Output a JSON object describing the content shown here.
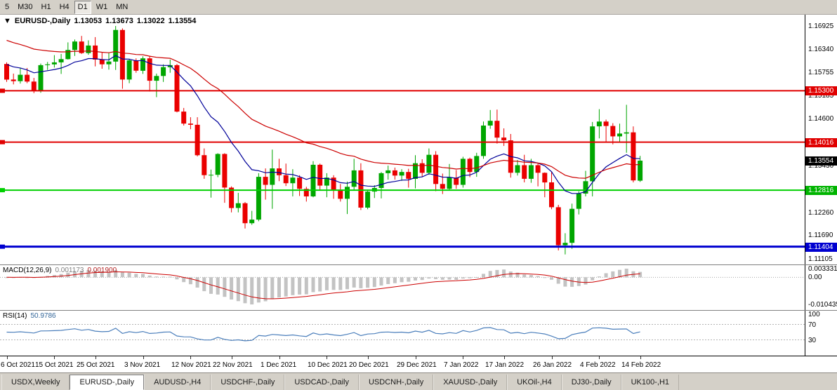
{
  "toolbar": {
    "buttons": [
      {
        "label": "5",
        "active": false
      },
      {
        "label": "M30",
        "active": false
      },
      {
        "label": "H1",
        "active": false
      },
      {
        "label": "H4",
        "active": false
      },
      {
        "label": "D1",
        "active": true
      },
      {
        "label": "W1",
        "active": false
      },
      {
        "label": "MN",
        "active": false
      }
    ]
  },
  "chart": {
    "collapse_icon": "▼",
    "title": "EURUSD-,Daily",
    "open": "1.13053",
    "high": "1.13673",
    "low": "1.13022",
    "close": "1.13554"
  },
  "price_axis": {
    "gridline_labels": [
      "1.16925",
      "1.16340",
      "1.15755",
      "1.15185",
      "1.14600",
      "1.13430",
      "1.12260",
      "1.11690",
      "1.11105"
    ],
    "badges": [
      {
        "value": "1.15300",
        "color": "#e00000"
      },
      {
        "value": "1.14016",
        "color": "#e00000"
      },
      {
        "value": "1.13554",
        "color": "#000000"
      },
      {
        "value": "1.12816",
        "color": "#00b400"
      },
      {
        "value": "1.11404",
        "color": "#0000d0"
      }
    ]
  },
  "macd_panel": {
    "label": "MACD(12,26,9)",
    "main_value": "0.001173",
    "signal_value": "0.001900",
    "scale": {
      "max": 0.003331,
      "min": -0.010435
    },
    "axis_labels": [
      {
        "text": "0.003331",
        "value": 0.003331
      },
      {
        "text": "0.00",
        "value": 0
      },
      {
        "text": "-0.010435",
        "value": -0.010435
      }
    ],
    "colors": {
      "histogram": "#c3c3c3",
      "signal": "#cc0000"
    }
  },
  "rsi_panel": {
    "label": "RSI(14)",
    "value": "50.9786",
    "axis_labels": [
      {
        "text": "100",
        "value": 100
      },
      {
        "text": "70",
        "value": 70
      },
      {
        "text": "30",
        "value": 30
      }
    ],
    "levels": [
      70,
      30
    ],
    "color": "#4a7ebb",
    "level_color": "#b3b3b3"
  },
  "chart_data": {
    "type": "candlestick",
    "symbol": "EURUSD-",
    "timeframe": "Daily",
    "up_color": "#00a600",
    "down_color": "#ea0000",
    "price_range": {
      "min": 1.1096,
      "max": 1.172
    },
    "last_bar": {
      "open": 1.13053,
      "high": 1.13673,
      "low": 1.13022,
      "close": 1.13554
    },
    "hlines": [
      {
        "price": 1.153,
        "color": "#e00000",
        "width": 2
      },
      {
        "price": 1.14016,
        "color": "#e00000",
        "width": 2
      },
      {
        "price": 1.12816,
        "color": "#00d000",
        "width": 2
      },
      {
        "price": 1.11404,
        "color": "#0000d0",
        "width": 3
      }
    ],
    "moving_averages": [
      {
        "period": 13,
        "color": "#000099",
        "seed": 1.1602
      },
      {
        "period": 34,
        "color": "#cc0000",
        "seed": 1.1662
      }
    ],
    "x_labels": [
      {
        "i": 0,
        "text": "6 Oct 2021"
      },
      {
        "i": 7,
        "text": "15 Oct 2021"
      },
      {
        "i": 13,
        "text": "25 Oct 2021"
      },
      {
        "i": 20,
        "text": "3 Nov 2021"
      },
      {
        "i": 27,
        "text": "12 Nov 2021"
      },
      {
        "i": 33,
        "text": "22 Nov 2021"
      },
      {
        "i": 40,
        "text": "1 Dec 2021"
      },
      {
        "i": 47,
        "text": "10 Dec 2021"
      },
      {
        "i": 53,
        "text": "20 Dec 2021"
      },
      {
        "i": 60,
        "text": "29 Dec 2021"
      },
      {
        "i": 67,
        "text": "7 Jan 2022"
      },
      {
        "i": 73,
        "text": "17 Jan 2022"
      },
      {
        "i": 80,
        "text": "26 Jan 2022"
      },
      {
        "i": 87,
        "text": "4 Feb 2022"
      },
      {
        "i": 93,
        "text": "14 Feb 2022"
      }
    ],
    "candles": [
      [
        1.1597,
        1.1601,
        1.1552,
        1.1558
      ],
      [
        1.1558,
        1.1573,
        1.1546,
        1.1554
      ],
      [
        1.1554,
        1.1586,
        1.1548,
        1.157
      ],
      [
        1.157,
        1.1587,
        1.1549,
        1.1553
      ],
      [
        1.1553,
        1.1562,
        1.1524,
        1.1531
      ],
      [
        1.1531,
        1.1598,
        1.1525,
        1.1594
      ],
      [
        1.1594,
        1.1602,
        1.1582,
        1.1596
      ],
      [
        1.1596,
        1.1619,
        1.1588,
        1.1601
      ],
      [
        1.1601,
        1.1622,
        1.1572,
        1.1609
      ],
      [
        1.1609,
        1.1651,
        1.1608,
        1.1632
      ],
      [
        1.1632,
        1.1658,
        1.1617,
        1.1653
      ],
      [
        1.1653,
        1.1667,
        1.1622,
        1.1624
      ],
      [
        1.1624,
        1.1656,
        1.162,
        1.1643
      ],
      [
        1.1643,
        1.1664,
        1.1591,
        1.1608
      ],
      [
        1.1608,
        1.1626,
        1.1585,
        1.1596
      ],
      [
        1.1596,
        1.1626,
        1.1583,
        1.1603
      ],
      [
        1.1603,
        1.1692,
        1.1582,
        1.1682
      ],
      [
        1.1682,
        1.1686,
        1.1535,
        1.1558
      ],
      [
        1.1558,
        1.1609,
        1.1549,
        1.1606
      ],
      [
        1.1606,
        1.1611,
        1.1575,
        1.158
      ],
      [
        1.158,
        1.1616,
        1.1572,
        1.1611
      ],
      [
        1.1611,
        1.1617,
        1.1528,
        1.1555
      ],
      [
        1.1555,
        1.1573,
        1.1514,
        1.1567
      ],
      [
        1.1567,
        1.1596,
        1.1552,
        1.1589
      ],
      [
        1.1589,
        1.1608,
        1.1575,
        1.1594
      ],
      [
        1.1594,
        1.1597,
        1.1476,
        1.1478
      ],
      [
        1.1478,
        1.1487,
        1.1443,
        1.1448
      ],
      [
        1.1448,
        1.1464,
        1.1434,
        1.1445
      ],
      [
        1.1445,
        1.1464,
        1.1366,
        1.1369
      ],
      [
        1.1369,
        1.1386,
        1.131,
        1.1319
      ],
      [
        1.1319,
        1.1333,
        1.1263,
        1.132
      ],
      [
        1.132,
        1.1374,
        1.1314,
        1.1372
      ],
      [
        1.1372,
        1.1374,
        1.125,
        1.1288
      ],
      [
        1.1288,
        1.1291,
        1.1226,
        1.1237
      ],
      [
        1.1237,
        1.1275,
        1.1226,
        1.1249
      ],
      [
        1.1249,
        1.1252,
        1.1186,
        1.1199
      ],
      [
        1.1199,
        1.123,
        1.1195,
        1.1208
      ],
      [
        1.1208,
        1.1324,
        1.1204,
        1.1315
      ],
      [
        1.1315,
        1.1336,
        1.1258,
        1.1295
      ],
      [
        1.1295,
        1.1383,
        1.1235,
        1.1336
      ],
      [
        1.1336,
        1.136,
        1.1304,
        1.1319
      ],
      [
        1.1319,
        1.1348,
        1.1292,
        1.1299
      ],
      [
        1.1299,
        1.1334,
        1.1266,
        1.1313
      ],
      [
        1.1313,
        1.1319,
        1.1267,
        1.1285
      ],
      [
        1.1285,
        1.129,
        1.1253,
        1.1266
      ],
      [
        1.1266,
        1.1354,
        1.1264,
        1.1345
      ],
      [
        1.1345,
        1.1348,
        1.128,
        1.1293
      ],
      [
        1.1293,
        1.1324,
        1.1264,
        1.1313
      ],
      [
        1.1313,
        1.1319,
        1.126,
        1.1283
      ],
      [
        1.1283,
        1.1297,
        1.1253,
        1.126
      ],
      [
        1.126,
        1.1303,
        1.1222,
        1.129
      ],
      [
        1.129,
        1.136,
        1.128,
        1.1331
      ],
      [
        1.1331,
        1.1349,
        1.1232,
        1.1238
      ],
      [
        1.1238,
        1.1283,
        1.1234,
        1.1278
      ],
      [
        1.1278,
        1.1294,
        1.1262,
        1.1287
      ],
      [
        1.1287,
        1.1327,
        1.1261,
        1.1324
      ],
      [
        1.1324,
        1.1343,
        1.1308,
        1.1331
      ],
      [
        1.1331,
        1.1338,
        1.1308,
        1.1318
      ],
      [
        1.1318,
        1.1334,
        1.1305,
        1.1327
      ],
      [
        1.1327,
        1.1335,
        1.1288,
        1.131
      ],
      [
        1.131,
        1.1369,
        1.1286,
        1.1349
      ],
      [
        1.1349,
        1.1359,
        1.1315,
        1.1325
      ],
      [
        1.1325,
        1.1386,
        1.132,
        1.137
      ],
      [
        1.137,
        1.1379,
        1.1279,
        1.1297
      ],
      [
        1.1297,
        1.1323,
        1.1272,
        1.1285
      ],
      [
        1.1285,
        1.1347,
        1.1281,
        1.1313
      ],
      [
        1.1313,
        1.1332,
        1.1285,
        1.1295
      ],
      [
        1.1295,
        1.1365,
        1.1288,
        1.136
      ],
      [
        1.136,
        1.1363,
        1.1314,
        1.1327
      ],
      [
        1.1327,
        1.1375,
        1.1315,
        1.1367
      ],
      [
        1.1367,
        1.1453,
        1.136,
        1.1443
      ],
      [
        1.1443,
        1.1482,
        1.1435,
        1.1455
      ],
      [
        1.1455,
        1.1483,
        1.1398,
        1.1413
      ],
      [
        1.1413,
        1.1436,
        1.1392,
        1.1406
      ],
      [
        1.1406,
        1.1422,
        1.1313,
        1.1325
      ],
      [
        1.1325,
        1.1357,
        1.1318,
        1.1344
      ],
      [
        1.1344,
        1.137,
        1.1301,
        1.131
      ],
      [
        1.131,
        1.136,
        1.13,
        1.1344
      ],
      [
        1.1344,
        1.1349,
        1.1291,
        1.1325
      ],
      [
        1.1325,
        1.1326,
        1.1264,
        1.1301
      ],
      [
        1.1301,
        1.1328,
        1.1234,
        1.1239
      ],
      [
        1.1239,
        1.1245,
        1.1131,
        1.1144
      ],
      [
        1.1144,
        1.1174,
        1.1121,
        1.115
      ],
      [
        1.115,
        1.1248,
        1.1135,
        1.1235
      ],
      [
        1.1235,
        1.1279,
        1.1221,
        1.1273
      ],
      [
        1.1273,
        1.133,
        1.1266,
        1.1304
      ],
      [
        1.1304,
        1.1452,
        1.1266,
        1.1441
      ],
      [
        1.1441,
        1.1484,
        1.1411,
        1.1453
      ],
      [
        1.1453,
        1.1458,
        1.1401,
        1.1442
      ],
      [
        1.1442,
        1.1449,
        1.1396,
        1.1416
      ],
      [
        1.1416,
        1.1448,
        1.1402,
        1.1423
      ],
      [
        1.1423,
        1.1495,
        1.1375,
        1.1426
      ],
      [
        1.1426,
        1.1441,
        1.1301,
        1.1306
      ],
      [
        1.13053,
        1.13673,
        1.13022,
        1.13554
      ]
    ]
  },
  "tabs": [
    {
      "label": "USDX,Weekly",
      "active": false
    },
    {
      "label": "EURUSD-,Daily",
      "active": true
    },
    {
      "label": "AUDUSD-,H4",
      "active": false
    },
    {
      "label": "USDCHF-,Daily",
      "active": false
    },
    {
      "label": "USDCAD-,Daily",
      "active": false
    },
    {
      "label": "USDCNH-,Daily",
      "active": false
    },
    {
      "label": "XAUUSD-,Daily",
      "active": false
    },
    {
      "label": "UKOil-,H4",
      "active": false
    },
    {
      "label": "DJ30-,Daily",
      "active": false
    },
    {
      "label": "UK100-,H1",
      "active": false
    }
  ]
}
